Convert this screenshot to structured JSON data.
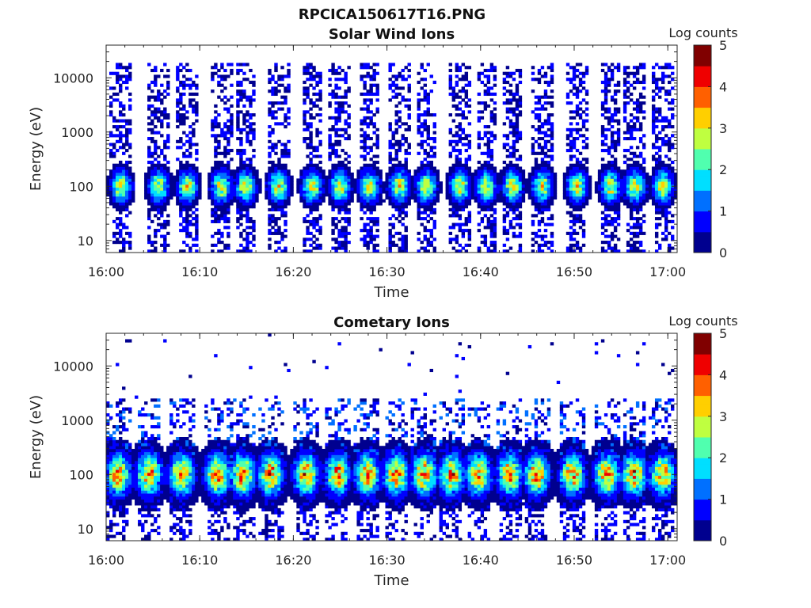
{
  "figure_title": "RPCICA150617T16.PNG",
  "colormap": [
    "#00008f",
    "#0000ff",
    "#0070ff",
    "#00dfff",
    "#50ffaf",
    "#bfff40",
    "#ffcf00",
    "#ff6000",
    "#ef0000",
    "#800000"
  ],
  "chart_data": [
    {
      "type": "heatmap",
      "title": "Solar Wind Ions",
      "xlabel": "Time",
      "ylabel": "Energy (eV)",
      "x_ticks": [
        "16:00",
        "16:10",
        "16:20",
        "16:30",
        "16:40",
        "16:50",
        "17:00"
      ],
      "xlim": [
        "16:00",
        "17:01"
      ],
      "y_scale": "log",
      "y_ticks": [
        "10",
        "100",
        "1000",
        "10000"
      ],
      "ylim": [
        6,
        40000
      ],
      "colorbar": {
        "label": "Log counts",
        "ticks": [
          "0",
          "1",
          "2",
          "3",
          "4",
          "5"
        ],
        "range": [
          0,
          5
        ]
      },
      "pulse_times_min": [
        1.6,
        5.6,
        8.7,
        12.3,
        14.9,
        18.4,
        22.0,
        25.0,
        28.1,
        31.3,
        34.2,
        37.8,
        40.6,
        43.4,
        46.6,
        50.3,
        53.9,
        56.5,
        59.5
      ],
      "peak_energy_eV": 100,
      "max_log_counts": 3.4
    },
    {
      "type": "heatmap",
      "title": "Cometary Ions",
      "xlabel": "Time",
      "ylabel": "Energy (eV)",
      "x_ticks": [
        "16:00",
        "16:10",
        "16:20",
        "16:30",
        "16:40",
        "16:50",
        "17:00"
      ],
      "xlim": [
        "16:00",
        "17:01"
      ],
      "y_scale": "log",
      "y_ticks": [
        "10",
        "100",
        "1000",
        "10000"
      ],
      "ylim": [
        6,
        40000
      ],
      "colorbar": {
        "label": "Log counts",
        "ticks": [
          "0",
          "1",
          "2",
          "3",
          "4",
          "5"
        ],
        "range": [
          0,
          5
        ]
      },
      "pulse_times_min": [
        1.3,
        4.6,
        8.1,
        11.9,
        14.6,
        17.6,
        21.4,
        24.7,
        27.9,
        31.0,
        34.0,
        36.9,
        39.8,
        43.1,
        46.0,
        49.8,
        53.5,
        56.4,
        59.4
      ],
      "peak_energy_eV": 100,
      "max_log_counts": 4.3
    }
  ]
}
